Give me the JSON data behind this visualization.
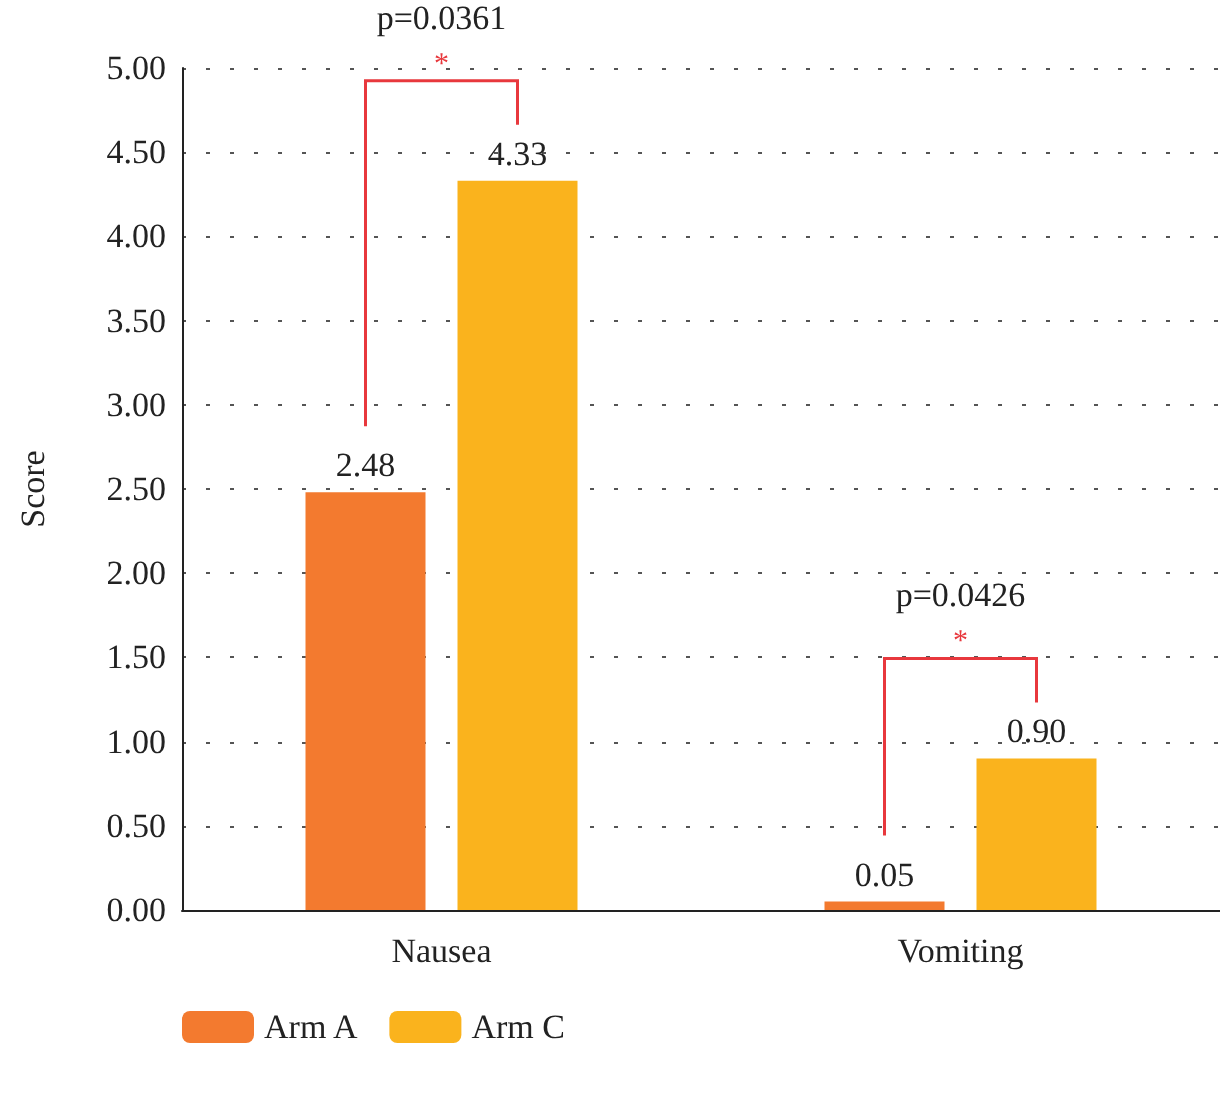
{
  "chart_data": {
    "type": "bar",
    "ylabel": "Score",
    "categories": [
      "Nausea",
      "Vomiting"
    ],
    "series": [
      {
        "name": "Arm A",
        "color": "#f37a2f",
        "values": [
          2.48,
          0.05
        ],
        "value_labels": [
          "2.48",
          "0.05"
        ]
      },
      {
        "name": "Arm C",
        "color": "#fab31d",
        "values": [
          4.33,
          0.9
        ],
        "value_labels": [
          "4.33",
          "0.90"
        ]
      }
    ],
    "ylim": [
      0,
      5
    ],
    "yticks": [
      {
        "value": 0,
        "label": "0.00"
      },
      {
        "value": 0.5,
        "label": "0.50"
      },
      {
        "value": 1,
        "label": "1.00"
      },
      {
        "value": 1.5,
        "label": "1.50"
      },
      {
        "value": 2,
        "label": "2.00"
      },
      {
        "value": 2.5,
        "label": "2.50"
      },
      {
        "value": 3,
        "label": "3.00"
      },
      {
        "value": 3.5,
        "label": "3.50"
      },
      {
        "value": 4,
        "label": "4.00"
      },
      {
        "value": 4.5,
        "label": "4.50"
      },
      {
        "value": 5,
        "label": "5.00"
      }
    ],
    "annotations": [
      "p=0.0361",
      "*",
      "p=0.0426",
      "*"
    ],
    "grid": "y",
    "legend": "bottom left"
  }
}
